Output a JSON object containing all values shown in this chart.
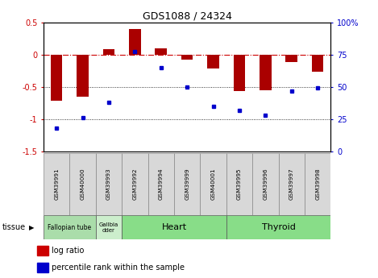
{
  "title": "GDS1088 / 24324",
  "samples": [
    "GSM39991",
    "GSM40000",
    "GSM39993",
    "GSM39992",
    "GSM39994",
    "GSM39999",
    "GSM40001",
    "GSM39995",
    "GSM39996",
    "GSM39997",
    "GSM39998"
  ],
  "log_ratio": [
    -0.72,
    -0.65,
    0.08,
    0.4,
    0.1,
    -0.08,
    -0.22,
    -0.57,
    -0.55,
    -0.12,
    -0.27
  ],
  "percentile_rank": [
    18,
    26,
    38,
    77,
    65,
    50,
    35,
    32,
    28,
    47,
    49
  ],
  "ylim_left": [
    -1.5,
    0.5
  ],
  "ylim_right": [
    0,
    100
  ],
  "bar_color": "#aa0000",
  "dot_color": "#0000cc",
  "background_color": "#ffffff",
  "tick_color_left": "#cc0000",
  "tick_color_right": "#0000cc",
  "yticks_left": [
    0.5,
    0.0,
    -0.5,
    -1.0,
    -1.5
  ],
  "ytick_labels_left": [
    "0.5",
    "0",
    "-0.5",
    "-1",
    "-1.5"
  ],
  "yticks_right": [
    100,
    75,
    50,
    25,
    0
  ],
  "ytick_labels_right": [
    "100%",
    "75",
    "50",
    "25",
    "0"
  ],
  "hline_dashdot": 0.0,
  "hlines_dot": [
    -0.5,
    -1.0
  ],
  "tissue_data": [
    {
      "label": "Fallopian tube",
      "start": 0,
      "end": 2,
      "color": "#aaddaa",
      "fontsize": 5.5
    },
    {
      "label": "Gallbla\ndder",
      "start": 2,
      "end": 3,
      "color": "#cceecc",
      "fontsize": 5.0
    },
    {
      "label": "Heart",
      "start": 3,
      "end": 7,
      "color": "#88dd88",
      "fontsize": 8
    },
    {
      "label": "Thyroid",
      "start": 7,
      "end": 11,
      "color": "#88dd88",
      "fontsize": 8
    }
  ],
  "legend_items": [
    {
      "label": "log ratio",
      "color": "#cc0000"
    },
    {
      "label": "percentile rank within the sample",
      "color": "#0000cc"
    }
  ]
}
